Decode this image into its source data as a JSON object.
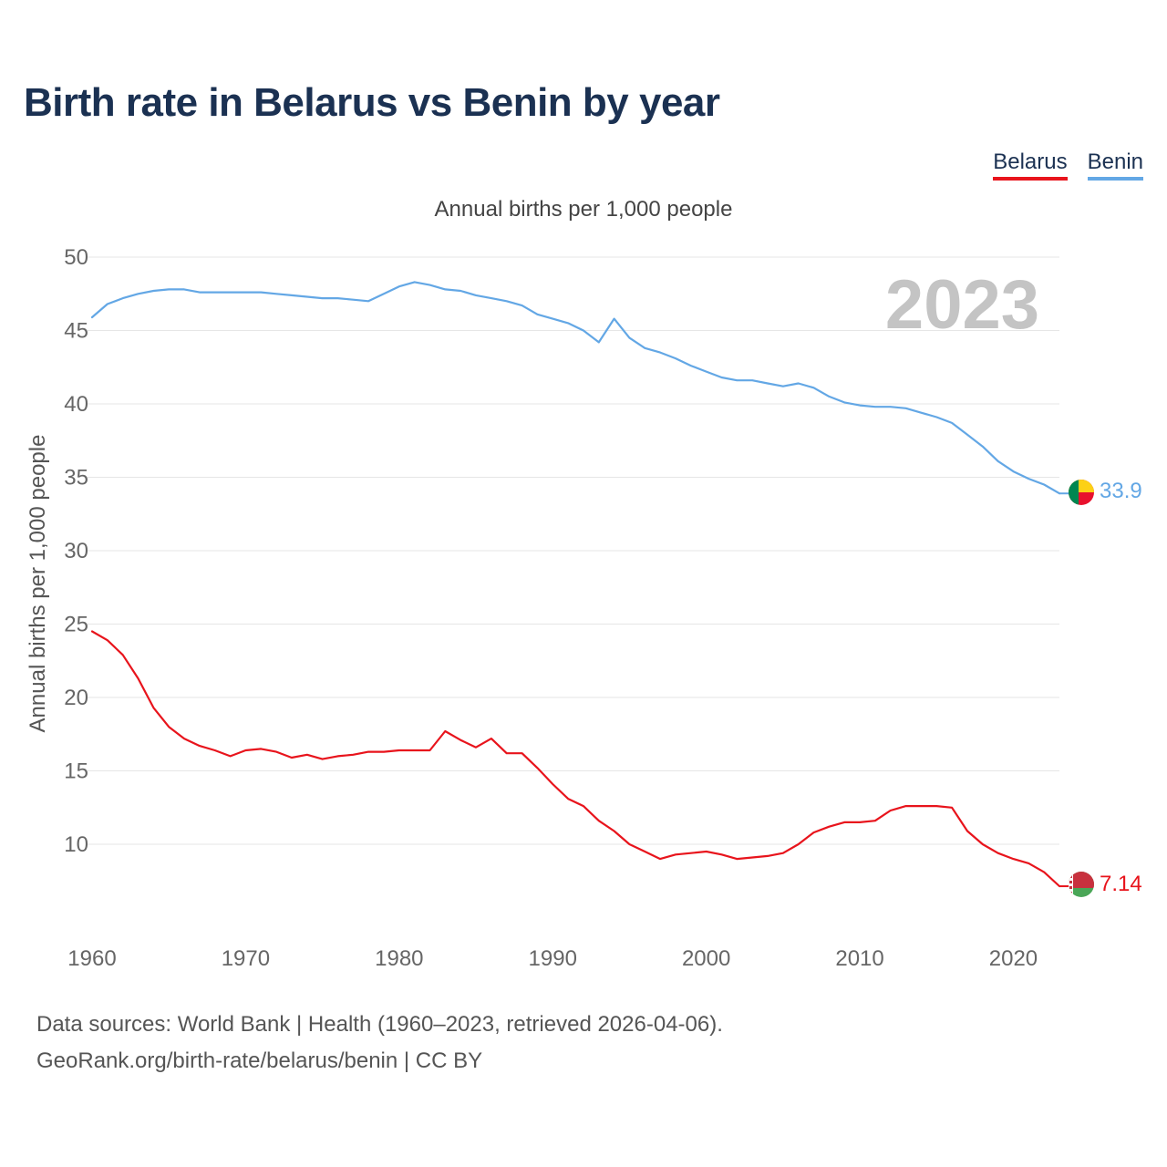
{
  "title": "Birth rate in Belarus vs Benin by year",
  "legend": {
    "items": [
      {
        "label": "Belarus",
        "color": "#e8141c"
      },
      {
        "label": "Benin",
        "color": "#63a7e5"
      }
    ]
  },
  "year_label": "2023",
  "footer": {
    "line1": "Data sources: World Bank | Health (1960–2023, retrieved 2026-04-06).",
    "line2": "GeoRank.org/birth-rate/belarus/benin | CC BY"
  },
  "chart_data": {
    "type": "line",
    "title": "Annual births per 1,000 people",
    "xlabel": "",
    "ylabel": "Annual births per 1,000 people",
    "xlim": [
      1960,
      2023
    ],
    "ylim": [
      5.5,
      50
    ],
    "yticks": [
      10,
      15,
      20,
      25,
      30,
      35,
      40,
      45,
      50
    ],
    "xticks": [
      1960,
      1970,
      1980,
      1990,
      2000,
      2010,
      2020
    ],
    "grid": true,
    "x": [
      1960,
      1961,
      1962,
      1963,
      1964,
      1965,
      1966,
      1967,
      1968,
      1969,
      1970,
      1971,
      1972,
      1973,
      1974,
      1975,
      1976,
      1977,
      1978,
      1979,
      1980,
      1981,
      1982,
      1983,
      1984,
      1985,
      1986,
      1987,
      1988,
      1989,
      1990,
      1991,
      1992,
      1993,
      1994,
      1995,
      1996,
      1997,
      1998,
      1999,
      2000,
      2001,
      2002,
      2003,
      2004,
      2005,
      2006,
      2007,
      2008,
      2009,
      2010,
      2011,
      2012,
      2013,
      2014,
      2015,
      2016,
      2017,
      2018,
      2019,
      2020,
      2021,
      2022,
      2023
    ],
    "series": [
      {
        "name": "Belarus",
        "color": "#e8141c",
        "end_label": "7.14",
        "values": [
          24.5,
          23.9,
          22.9,
          21.3,
          19.3,
          18.0,
          17.2,
          16.7,
          16.4,
          16.0,
          16.4,
          16.5,
          16.3,
          15.9,
          16.1,
          15.8,
          16.0,
          16.1,
          16.3,
          16.3,
          16.4,
          16.4,
          16.4,
          17.7,
          17.1,
          16.6,
          17.2,
          16.2,
          16.2,
          15.2,
          14.1,
          13.1,
          12.6,
          11.6,
          10.9,
          10.0,
          9.5,
          9.0,
          9.3,
          9.4,
          9.5,
          9.3,
          9.0,
          9.1,
          9.2,
          9.4,
          10.0,
          10.8,
          11.2,
          11.5,
          11.5,
          11.6,
          12.3,
          12.6,
          12.6,
          12.6,
          12.5,
          10.9,
          10.0,
          9.4,
          9.0,
          8.7,
          8.1,
          7.14
        ]
      },
      {
        "name": "Benin",
        "color": "#63a7e5",
        "end_label": "33.9",
        "values": [
          45.9,
          46.8,
          47.2,
          47.5,
          47.7,
          47.8,
          47.8,
          47.6,
          47.6,
          47.6,
          47.6,
          47.6,
          47.5,
          47.4,
          47.3,
          47.2,
          47.2,
          47.1,
          47.0,
          47.5,
          48.0,
          48.3,
          48.1,
          47.8,
          47.7,
          47.4,
          47.2,
          47.0,
          46.7,
          46.1,
          45.8,
          45.5,
          45.0,
          44.2,
          45.8,
          44.5,
          43.8,
          43.5,
          43.1,
          42.6,
          42.2,
          41.8,
          41.6,
          41.6,
          41.4,
          41.2,
          41.4,
          41.1,
          40.5,
          40.1,
          39.9,
          39.8,
          39.8,
          39.7,
          39.4,
          39.1,
          38.7,
          37.9,
          37.1,
          36.1,
          35.4,
          34.9,
          34.5,
          33.9
        ]
      }
    ]
  }
}
